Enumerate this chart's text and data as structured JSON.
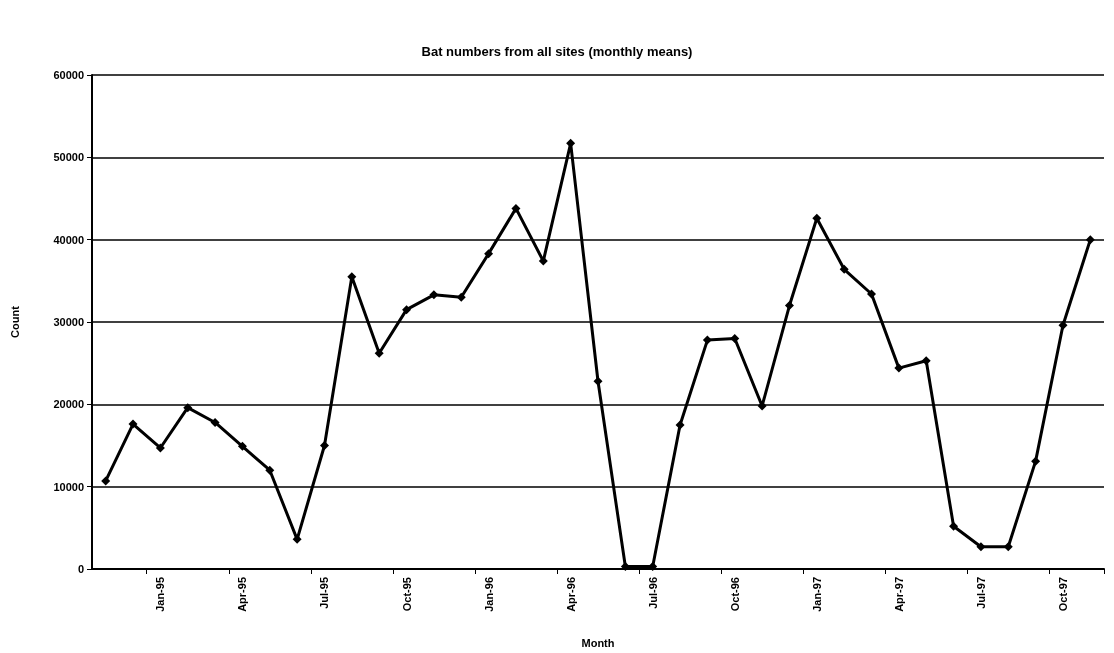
{
  "chart_data": {
    "type": "line",
    "title": "Bat numbers from all sites (monthly means)",
    "xlabel": "Month",
    "ylabel": "Count",
    "categories": [
      null,
      null,
      "Jan-95",
      null,
      null,
      "Apr-95",
      null,
      null,
      "Jul-95",
      null,
      null,
      "Oct-95",
      null,
      null,
      "Jan-96",
      null,
      null,
      "Apr-96",
      null,
      null,
      "Jul-96",
      null,
      null,
      "Oct-96",
      null,
      null,
      "Jan-97",
      null,
      null,
      "Apr-97",
      null,
      null,
      "Jul-97",
      null,
      null,
      "Oct-97",
      null
    ],
    "series": [
      {
        "color": "#000000",
        "values": [
          10700,
          17600,
          14700,
          19600,
          17800,
          14900,
          12000,
          3600,
          15000,
          35500,
          26200,
          31500,
          33300,
          33000,
          38300,
          43800,
          37400,
          51700,
          22800,
          300,
          300,
          17500,
          27800,
          28000,
          19800,
          32000,
          42600,
          36400,
          33400,
          24400,
          25300,
          5200,
          2700,
          2700,
          13100,
          29600,
          40000
        ]
      }
    ],
    "ylim": [
      0,
      60000
    ],
    "yticks": [
      0,
      10000,
      20000,
      30000,
      40000,
      50000,
      60000
    ],
    "grid": "y",
    "marker": "diamond",
    "line_style": "solid"
  }
}
